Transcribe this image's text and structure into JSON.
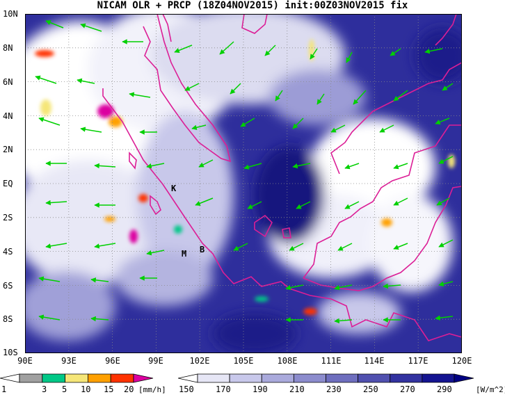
{
  "title": "NICAM OLR + PRCP (18Z04NOV2015) init:00Z03NOV2015 fix",
  "lat_labels": [
    "10N",
    "8N",
    "6N",
    "4N",
    "2N",
    "EQ",
    "2S",
    "4S",
    "6S",
    "8S",
    "10S"
  ],
  "lon_labels": [
    "90E",
    "93E",
    "96E",
    "99E",
    "102E",
    "105E",
    "108E",
    "111E",
    "114E",
    "117E",
    "120E"
  ],
  "stations": [
    "K",
    "M",
    "B"
  ],
  "prcp_colorbar": {
    "ticks": [
      "1",
      "3",
      "5",
      "10",
      "15",
      "20"
    ],
    "unit": "[mm/h]",
    "colors": [
      "#ffffff",
      "#a0a0a0",
      "#00c887",
      "#f5e678",
      "#ffa000",
      "#ff3200",
      "#dc00a0"
    ]
  },
  "olr_colorbar": {
    "ticks": [
      "150",
      "170",
      "190",
      "210",
      "230",
      "250",
      "270",
      "290"
    ],
    "unit": "[W/m^2]",
    "colors": [
      "#ffffff",
      "#e6e6f5",
      "#c8c8eb",
      "#aaaadc",
      "#8c8ccd",
      "#6e6ebe",
      "#5050af",
      "#3232a0",
      "#141491",
      "#000082"
    ]
  },
  "colors": {
    "wind_arrow": "#00d000",
    "coastline": "#dc1e96",
    "grid": "#888888"
  }
}
